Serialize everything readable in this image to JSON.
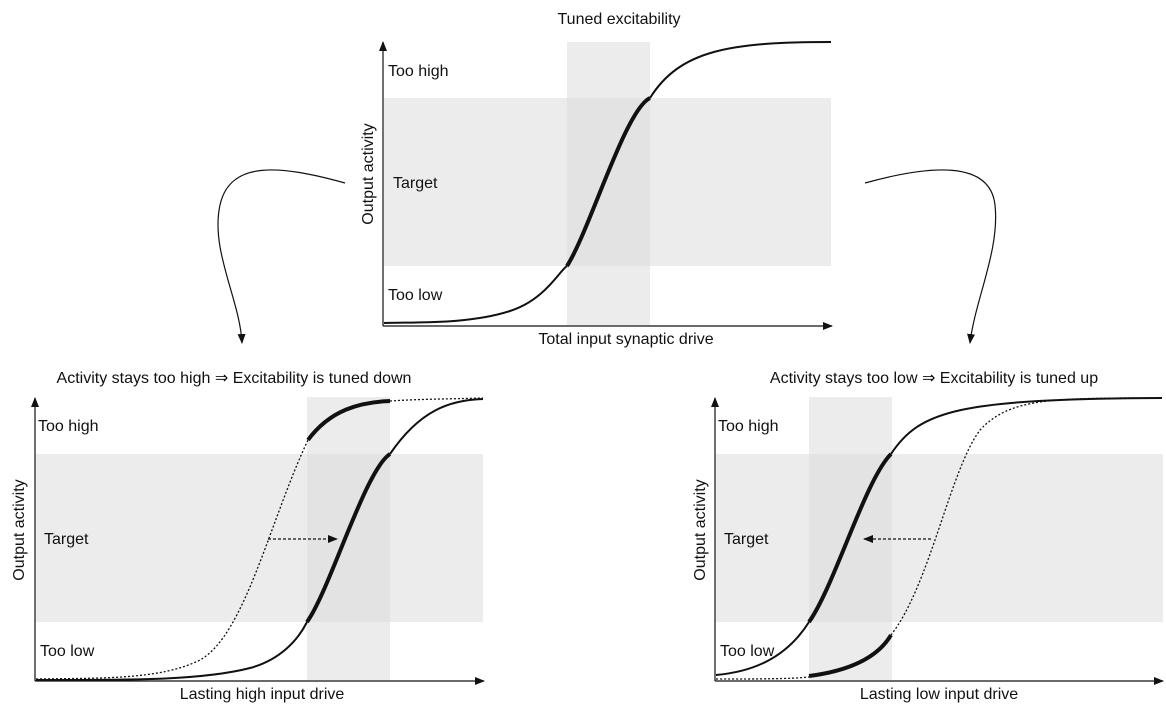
{
  "top_panel": {
    "title": "Tuned excitability",
    "ylabel": "Output activity",
    "xlabel": "Total input synaptic drive",
    "zones": {
      "high": "Too high",
      "target": "Target",
      "low": "Too low"
    }
  },
  "left_panel": {
    "title": "Activity stays too high  ⇒ Excitability is tuned down",
    "ylabel": "Output activity",
    "xlabel": "Lasting high input drive",
    "zones": {
      "high": "Too high",
      "target": "Target",
      "low": "Too low"
    }
  },
  "right_panel": {
    "title": "Activity stays too low  ⇒ Excitability is tuned up",
    "ylabel": "Output activity",
    "xlabel": "Lasting low input drive",
    "zones": {
      "high": "Too high",
      "target": "Target",
      "low": "Too low"
    }
  }
}
